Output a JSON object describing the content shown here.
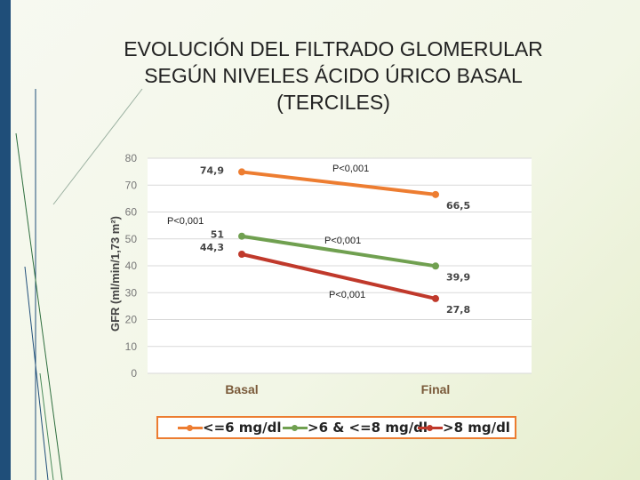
{
  "slide": {
    "title_line1": "EVOLUCIÓN DEL FILTRADO GLOMERULAR",
    "title_line2": "SEGÚN NIVELES ÁCIDO ÚRICO BASAL",
    "title_line3": "(TERCILES)"
  },
  "chart_data": {
    "type": "line",
    "title": "",
    "xlabel": "",
    "ylabel": "GFR (ml/min/1,73 m²)",
    "categories": [
      "Basal",
      "Final"
    ],
    "ylim": [
      0,
      80
    ],
    "yticks": [
      "0",
      "10",
      "20",
      "30",
      "40",
      "50",
      "60",
      "70",
      "80"
    ],
    "grid": true,
    "legend_position": "bottom",
    "series": [
      {
        "name": "<=6 mg/dl",
        "color": "#ed7d31",
        "values": [
          74.9,
          66.5
        ],
        "labels": [
          "74,9",
          "66,5"
        ]
      },
      {
        "name": ">6 & <=8 mg/dl",
        "color": "#70a050",
        "values": [
          51,
          39.9
        ],
        "labels": [
          "51",
          "39,9"
        ]
      },
      {
        "name": ">8 mg/dl",
        "color": "#c0392b",
        "values": [
          44.3,
          27.8
        ],
        "labels": [
          "44,3",
          "27,8"
        ]
      }
    ],
    "annotations": [
      "P<0,001",
      "P<0,001",
      "P<0,001",
      "P<0,001"
    ]
  }
}
